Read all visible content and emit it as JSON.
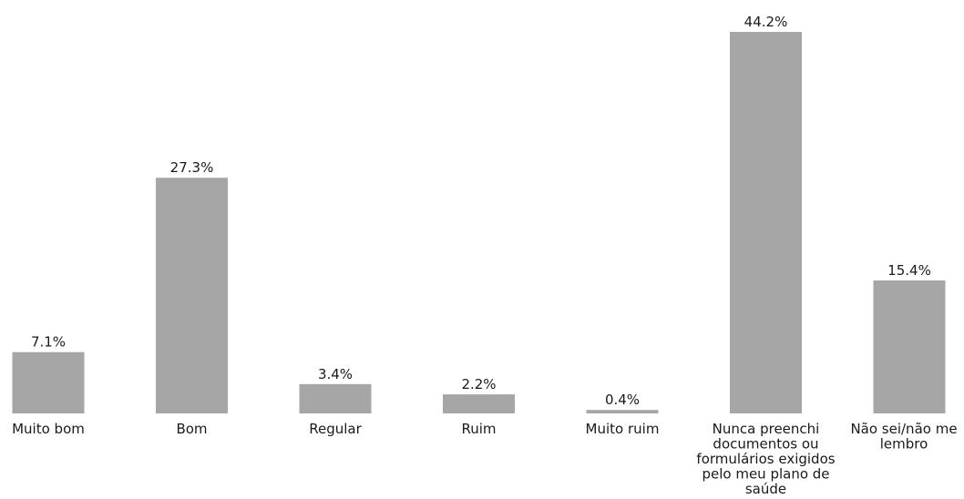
{
  "chart_data": {
    "type": "bar",
    "categories": [
      "Muito bom",
      "Bom",
      "Regular",
      "Ruim",
      "Muito ruim",
      "Nunca preenchi documentos ou formulários exigidos pelo meu plano de saúde",
      "Não sei/não me lembro"
    ],
    "category_lines": [
      [
        "Muito bom"
      ],
      [
        "Bom"
      ],
      [
        "Regular"
      ],
      [
        "Ruim"
      ],
      [
        "Muito ruim"
      ],
      [
        "Nunca preenchi",
        "documentos ou",
        "formulários exigidos",
        "pelo meu plano de",
        "saúde"
      ],
      [
        "Não sei/não me",
        "lembro"
      ]
    ],
    "values": [
      7.1,
      27.3,
      3.4,
      2.2,
      0.4,
      44.2,
      15.4
    ],
    "data_labels": [
      "7.1%",
      "27.3%",
      "3.4%",
      "2.2%",
      "0.4%",
      "44.2%",
      "15.4%"
    ],
    "ylim": [
      0,
      44.2
    ],
    "grid": false,
    "bar_color": "#a6a6a6"
  }
}
